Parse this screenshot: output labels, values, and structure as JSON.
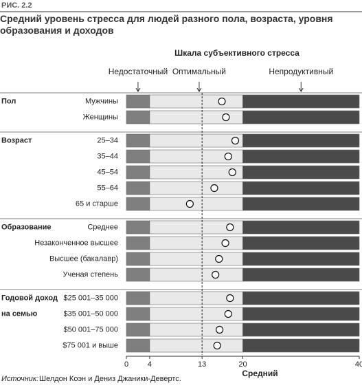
{
  "chart_data": {
    "type": "dot",
    "figure_label": "РИС. 2.2",
    "title": "Средний уровень стресса для людей разного пола, возраста, уровня образования и доходов",
    "scale_title": "Шкала субъективного стресса",
    "zones": [
      {
        "label": "Недостаточный",
        "range": [
          0,
          4
        ],
        "color": "#7f7f7f",
        "arrow": 2
      },
      {
        "label": "Оптимальный",
        "range": [
          4,
          20
        ],
        "color": "#e9e9e9",
        "arrow": 12.5
      },
      {
        "label": "Непродуктивный",
        "range": [
          20,
          40
        ],
        "color": "#4a4a4a",
        "arrow": 30
      }
    ],
    "reference_line": 13,
    "groups": [
      {
        "name": [
          "Пол"
        ],
        "categories": [
          "Мужчины",
          "Женщины"
        ],
        "values": [
          16.4,
          17.1
        ]
      },
      {
        "name": [
          "Возраст"
        ],
        "categories": [
          "25–34",
          "35–44",
          "45–54",
          "55–64",
          "65 и старше"
        ],
        "values": [
          18.7,
          17.5,
          18.2,
          15.1,
          10.9
        ]
      },
      {
        "name": [
          "Образование"
        ],
        "categories": [
          "Среднее",
          "Незаконченное высшее",
          "Высшее (бакалавр)",
          "Ученая степень"
        ],
        "values": [
          17.8,
          17,
          15.9,
          15.3
        ]
      },
      {
        "name": [
          "Годовой доход",
          "на семью"
        ],
        "categories": [
          "$25 001–35 000",
          "$35 001–50 000",
          "$50 001–75 000",
          "$75 001 и выше"
        ],
        "values": [
          17.8,
          17.5,
          16,
          15.6
        ]
      }
    ],
    "xlim": [
      0,
      40
    ],
    "xticks": [
      0,
      4,
      13,
      20,
      40
    ],
    "xlabel": "Средний",
    "source_prefix": "Источник:",
    "source": "Шелдон Коэн и Дениз Джаники-Девертс."
  }
}
